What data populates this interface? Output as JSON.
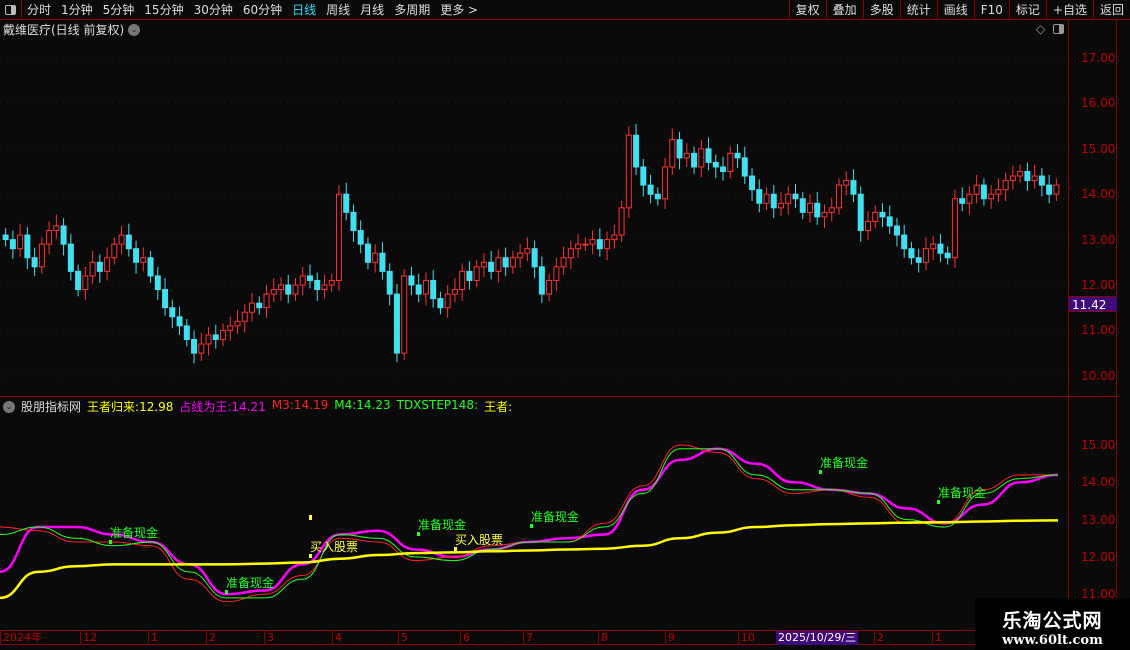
{
  "toolbar": {
    "periods": [
      "分时",
      "1分钟",
      "5分钟",
      "15分钟",
      "30分钟",
      "60分钟",
      "日线",
      "周线",
      "月线",
      "多周期",
      "更多 >"
    ],
    "active": "日线",
    "right_buttons": [
      "复权",
      "叠加",
      "多股",
      "统计",
      "画线",
      "F10",
      "标记",
      "+自选",
      "返回"
    ]
  },
  "main": {
    "title": "戴维医疗(日线 前复权)",
    "price_tag": "11.42",
    "y_ticks": [
      "17.00",
      "16.00",
      "15.00",
      "14.00",
      "13.00",
      "12.00",
      "11.00",
      "10.00"
    ]
  },
  "indicator": {
    "name": "股朋指标网",
    "legend": [
      {
        "label": "王者归来:",
        "value": "12.98",
        "color": "#ffff00"
      },
      {
        "label": "占线为王:",
        "value": "14.21",
        "color": "#ff00ff"
      },
      {
        "label": "M3:",
        "value": "14.19",
        "color": "#ff2020"
      },
      {
        "label": "M4:",
        "value": "14.23",
        "color": "#20ff20"
      },
      {
        "label": "TDXSTEP148:",
        "value": "",
        "color": "#20ff20"
      },
      {
        "label": "王者:",
        "value": "",
        "color": "#ffff00"
      }
    ],
    "y_ticks": [
      "15.00",
      "14.00",
      "13.00",
      "12.00",
      "11.00"
    ],
    "annotations": [
      {
        "text": "准备现金",
        "color": "#20ff20"
      },
      {
        "text": "准备现金",
        "color": "#20ff20"
      },
      {
        "text": "准备现金",
        "color": "#20ff20"
      },
      {
        "text": "准备现金",
        "color": "#20ff20"
      },
      {
        "text": "准备现金",
        "color": "#20ff20"
      },
      {
        "text": "准备现金",
        "color": "#20ff20"
      },
      {
        "text": "买入股票",
        "color": "#ffff40"
      },
      {
        "text": "买入股票",
        "color": "#ffff40"
      }
    ]
  },
  "x_axis": {
    "labels": [
      "2024年",
      "12",
      "1",
      "2",
      "3",
      "4",
      "5",
      "6",
      "7",
      "8",
      "9",
      "10",
      "2",
      "1"
    ],
    "cursor_date": "2025/10/29/三"
  },
  "watermark": {
    "title": "乐淘公式网",
    "url": "www.60lt.com"
  },
  "colors": {
    "up": "#ff3030",
    "down": "#40e0f0",
    "border": "#8b0000"
  },
  "chart_data": {
    "type": "candlestick+line",
    "price_close": [
      13.0,
      12.8,
      13.1,
      12.6,
      12.4,
      12.9,
      13.2,
      13.3,
      12.9,
      12.3,
      11.9,
      12.2,
      12.5,
      12.3,
      12.6,
      12.9,
      13.1,
      12.8,
      12.5,
      12.6,
      12.2,
      11.9,
      11.5,
      11.3,
      11.1,
      10.8,
      10.5,
      10.7,
      10.9,
      10.8,
      11.0,
      11.1,
      11.2,
      11.4,
      11.6,
      11.5,
      11.8,
      11.9,
      12.0,
      11.8,
      12.0,
      12.2,
      12.1,
      11.9,
      12.0,
      12.1,
      14.0,
      13.6,
      13.2,
      12.9,
      12.5,
      12.7,
      12.3,
      11.8,
      10.5,
      12.2,
      12.0,
      11.8,
      12.1,
      11.7,
      11.5,
      11.8,
      11.9,
      12.3,
      12.1,
      12.4,
      12.5,
      12.3,
      12.6,
      12.4,
      12.6,
      12.7,
      12.8,
      12.4,
      11.8,
      12.1,
      12.4,
      12.6,
      12.8,
      12.9,
      12.9,
      13.0,
      12.8,
      13.0,
      13.1,
      13.7,
      15.3,
      14.6,
      14.2,
      14.0,
      13.9,
      14.6,
      15.2,
      14.8,
      14.9,
      14.6,
      15.0,
      14.7,
      14.6,
      14.5,
      14.9,
      14.8,
      14.4,
      14.1,
      13.8,
      14.0,
      13.7,
      13.8,
      14.0,
      13.9,
      13.6,
      13.8,
      13.5,
      13.6,
      13.7,
      14.2,
      14.3,
      14.0,
      13.2,
      13.4,
      13.6,
      13.5,
      13.3,
      13.1,
      12.8,
      12.6,
      12.5,
      12.8,
      12.9,
      12.7,
      12.6,
      13.9,
      13.8,
      14.0,
      14.2,
      13.9,
      14.0,
      14.1,
      14.3,
      14.4,
      14.5,
      14.3,
      14.4,
      14.2,
      14.0,
      14.2
    ],
    "indicator_series": [
      {
        "name": "占线为王",
        "color": "#ff00ff",
        "values": [
          11.6,
          12.8,
          12.8,
          12.6,
          12.4,
          11.8,
          11.0,
          11.1,
          11.8,
          12.6,
          12.7,
          12.2,
          12.0,
          12.2,
          12.4,
          12.5,
          12.6,
          13.8,
          14.6,
          14.9,
          14.5,
          14.0,
          13.8,
          13.7,
          13.3,
          12.9,
          13.4,
          14.0,
          14.2
        ]
      },
      {
        "name": "M3",
        "color": "#ff2020",
        "values": [
          12.8,
          12.7,
          12.4,
          12.4,
          12.3,
          11.4,
          10.8,
          11.0,
          11.5,
          12.5,
          12.4,
          11.9,
          12.0,
          12.3,
          12.4,
          12.4,
          12.9,
          13.9,
          15.0,
          14.8,
          14.1,
          13.7,
          13.8,
          13.6,
          12.9,
          12.9,
          13.8,
          14.2,
          14.2
        ]
      },
      {
        "name": "M4",
        "color": "#20ff20",
        "values": [
          12.6,
          12.8,
          12.5,
          12.3,
          12.4,
          11.6,
          10.9,
          10.9,
          11.4,
          12.6,
          12.5,
          12.0,
          11.9,
          12.2,
          12.4,
          12.4,
          12.8,
          13.7,
          14.9,
          14.9,
          14.2,
          13.8,
          13.8,
          13.7,
          13.0,
          12.8,
          13.7,
          14.1,
          14.2
        ]
      },
      {
        "name": "王者归来",
        "color": "#ffff00",
        "values": [
          10.9,
          11.6,
          11.75,
          11.8,
          11.8,
          11.8,
          11.8,
          11.82,
          11.85,
          11.95,
          12.05,
          12.1,
          12.12,
          12.15,
          12.17,
          12.2,
          12.22,
          12.3,
          12.5,
          12.65,
          12.8,
          12.85,
          12.88,
          12.9,
          12.92,
          12.93,
          12.95,
          12.97,
          12.98
        ]
      }
    ],
    "price_ylim": [
      10,
      17
    ],
    "indicator_ylim": [
      11,
      15
    ]
  }
}
